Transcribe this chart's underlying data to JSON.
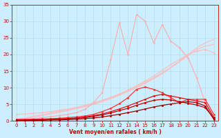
{
  "xlabel": "Vent moyen/en rafales ( km/h )",
  "ylabel": "",
  "xlim": [
    -0.5,
    23.5
  ],
  "ylim": [
    0,
    35
  ],
  "xticks": [
    0,
    1,
    2,
    3,
    4,
    5,
    6,
    7,
    8,
    9,
    10,
    11,
    12,
    13,
    14,
    15,
    16,
    17,
    18,
    19,
    20,
    21,
    22,
    23
  ],
  "yticks": [
    0,
    5,
    10,
    15,
    20,
    25,
    30,
    35
  ],
  "background_color": "#cceeff",
  "grid_color": "#aadddd",
  "x": [
    0,
    1,
    2,
    3,
    4,
    5,
    6,
    7,
    8,
    9,
    10,
    11,
    12,
    13,
    14,
    15,
    16,
    17,
    18,
    19,
    20,
    21,
    22,
    23
  ],
  "lines": [
    {
      "y": [
        0.5,
        0.9,
        1.4,
        1.9,
        2.4,
        2.9,
        3.4,
        4.0,
        4.6,
        5.3,
        6.1,
        7.0,
        8.0,
        9.1,
        10.3,
        11.6,
        13.0,
        14.5,
        16.2,
        18.0,
        20.0,
        22.0,
        23.5,
        24.5
      ],
      "color": "#ffbbbb",
      "linewidth": 0.8,
      "marker": null,
      "zorder": 1
    },
    {
      "y": [
        0.3,
        0.7,
        1.1,
        1.6,
        2.1,
        2.6,
        3.1,
        3.7,
        4.3,
        5.0,
        5.8,
        6.7,
        7.7,
        8.8,
        10.0,
        11.3,
        12.7,
        14.2,
        16.0,
        17.8,
        19.6,
        21.5,
        22.5,
        23.0
      ],
      "color": "#ffbbbb",
      "linewidth": 0.8,
      "marker": null,
      "zorder": 1
    },
    {
      "y": [
        0.3,
        0.5,
        0.7,
        1.0,
        1.3,
        1.6,
        2.0,
        2.5,
        3.5,
        5.5,
        8.5,
        18.5,
        29.5,
        20.0,
        32.0,
        30.0,
        23.5,
        29.0,
        24.0,
        22.0,
        19.0,
        13.0,
        5.5,
        1.5
      ],
      "color": "#ffaaaa",
      "linewidth": 0.8,
      "marker": "o",
      "markersize": 1.5,
      "zorder": 2
    },
    {
      "y": [
        2.0,
        2.1,
        2.3,
        2.5,
        2.8,
        3.2,
        3.6,
        4.1,
        4.7,
        5.4,
        6.2,
        7.1,
        8.1,
        9.3,
        10.6,
        12.0,
        13.5,
        15.2,
        17.0,
        18.5,
        20.0,
        21.0,
        21.5,
        20.5
      ],
      "color": "#ffbbbb",
      "linewidth": 0.8,
      "marker": "o",
      "markersize": 1.5,
      "zorder": 2
    },
    {
      "y": [
        0.5,
        0.5,
        0.5,
        0.6,
        0.7,
        0.8,
        1.0,
        1.2,
        1.5,
        2.0,
        2.8,
        3.8,
        5.2,
        7.0,
        9.5,
        10.2,
        9.5,
        8.5,
        7.0,
        5.5,
        6.5,
        6.5,
        6.5,
        2.0
      ],
      "color": "#ff3333",
      "linewidth": 0.9,
      "marker": "o",
      "markersize": 1.8,
      "zorder": 3
    },
    {
      "y": [
        0.3,
        0.3,
        0.4,
        0.4,
        0.5,
        0.6,
        0.7,
        0.9,
        1.2,
        1.6,
        2.1,
        2.8,
        3.6,
        4.5,
        5.5,
        6.5,
        7.5,
        8.0,
        7.5,
        7.0,
        6.5,
        6.0,
        5.5,
        1.0
      ],
      "color": "#dd1111",
      "linewidth": 0.9,
      "marker": "o",
      "markersize": 1.8,
      "zorder": 3
    },
    {
      "y": [
        0.2,
        0.2,
        0.3,
        0.3,
        0.4,
        0.5,
        0.6,
        0.8,
        1.0,
        1.4,
        1.8,
        2.4,
        3.1,
        3.8,
        4.7,
        5.5,
        6.2,
        6.5,
        6.3,
        5.8,
        5.3,
        4.8,
        4.0,
        0.8
      ],
      "color": "#bb0000",
      "linewidth": 0.9,
      "marker": "o",
      "markersize": 1.8,
      "zorder": 3
    },
    {
      "y": [
        0.1,
        0.1,
        0.2,
        0.2,
        0.3,
        0.3,
        0.4,
        0.5,
        0.7,
        0.9,
        1.2,
        1.6,
        2.0,
        2.5,
        3.0,
        3.6,
        4.2,
        4.7,
        5.1,
        5.5,
        5.8,
        5.5,
        4.5,
        0.5
      ],
      "color": "#990000",
      "linewidth": 0.9,
      "marker": "o",
      "markersize": 1.8,
      "zorder": 3
    }
  ],
  "tick_fontsize": 5,
  "xlabel_fontsize": 5.5,
  "tick_color": "#cc0000",
  "spine_color": "#cc0000"
}
